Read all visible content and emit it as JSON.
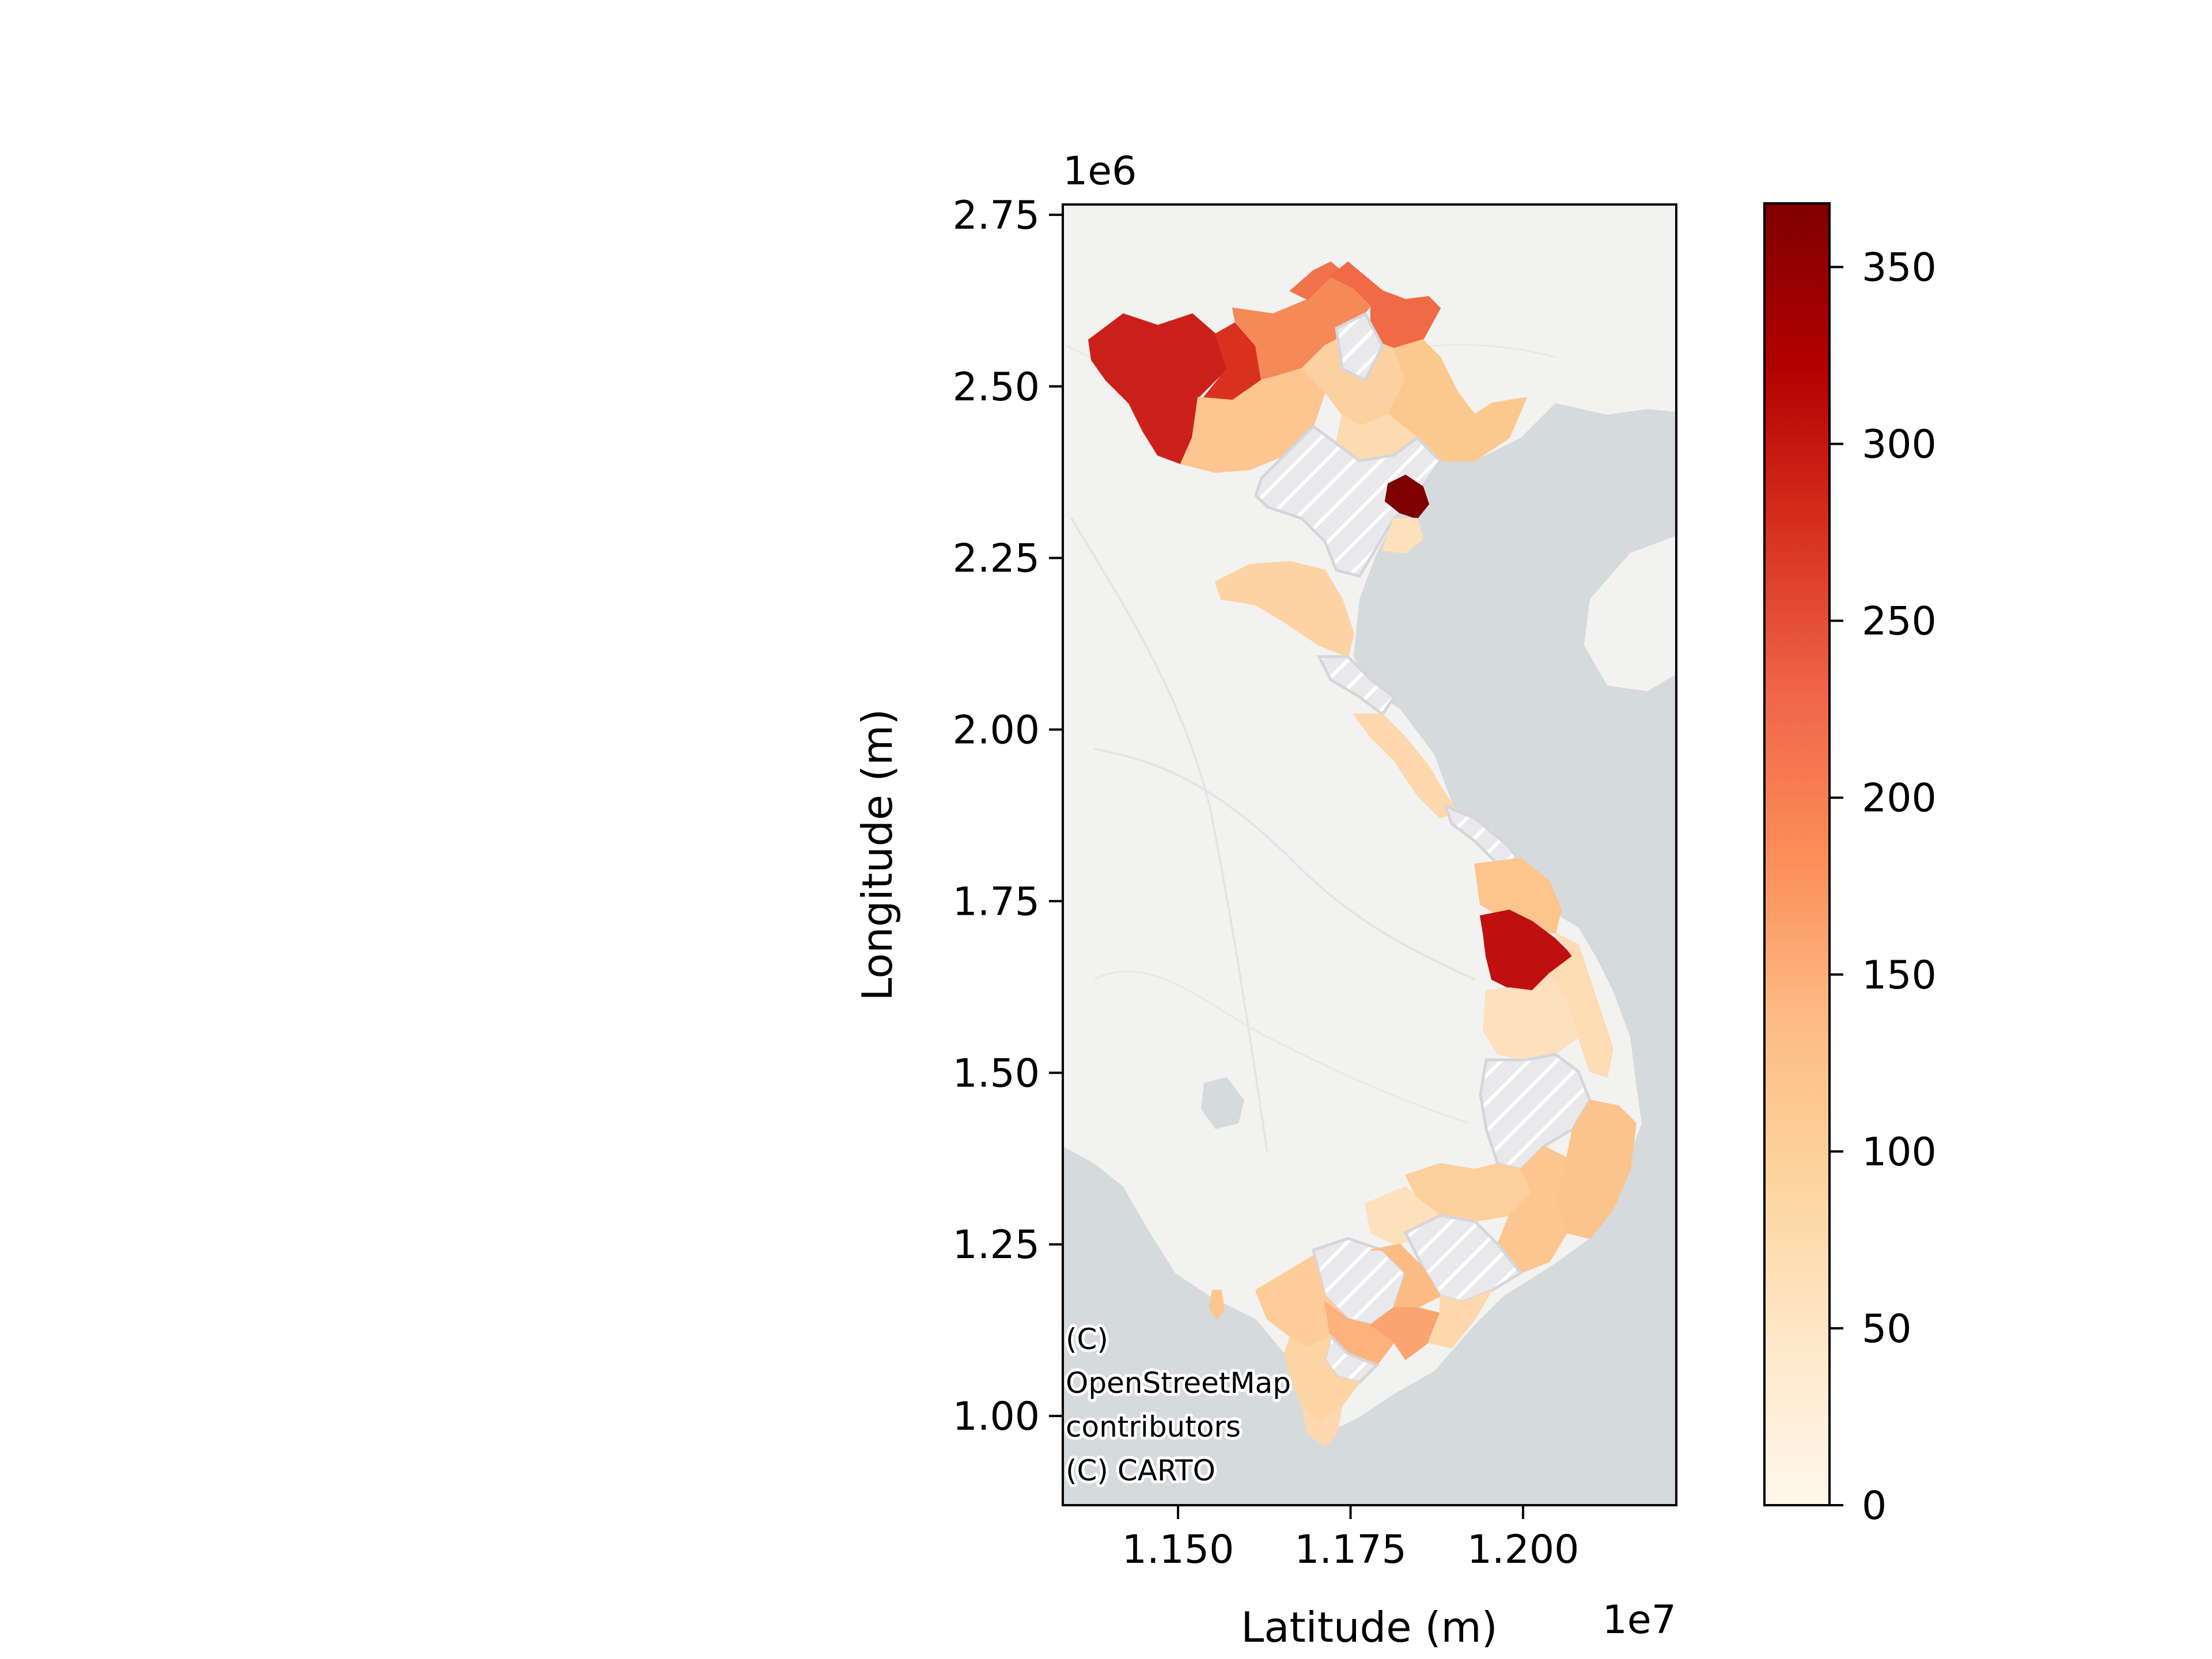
{
  "chart_data": {
    "type": "choropleth-map",
    "xlabel": "Latitude (m)",
    "ylabel": "Longitude (m)",
    "x_offset_label": "1e7",
    "y_offset_label": "1e6",
    "xlim": [
      11333000,
      12222000
    ],
    "ylim": [
      870000,
      2765000
    ],
    "x_ticks": [
      {
        "value": 11500000,
        "label": "1.150"
      },
      {
        "value": 11750000,
        "label": "1.175"
      },
      {
        "value": 12000000,
        "label": "1.200"
      }
    ],
    "y_ticks": [
      {
        "value": 1000000,
        "label": "1.00"
      },
      {
        "value": 1250000,
        "label": "1.25"
      },
      {
        "value": 1500000,
        "label": "1.50"
      },
      {
        "value": 1750000,
        "label": "1.75"
      },
      {
        "value": 2000000,
        "label": "2.00"
      },
      {
        "value": 2250000,
        "label": "2.25"
      },
      {
        "value": 2500000,
        "label": "2.50"
      },
      {
        "value": 2750000,
        "label": "2.75"
      }
    ],
    "colorbar": {
      "cmap": "OrRd",
      "range": [
        0,
        368
      ],
      "ticks": [
        0,
        50,
        100,
        150,
        200,
        250,
        300,
        350
      ],
      "tick_labels": [
        "0",
        "50",
        "100",
        "150",
        "200",
        "250",
        "300",
        "350"
      ]
    },
    "missing_style": "light grey with white diagonal hatching",
    "basemap": {
      "attribution_lines": [
        "(C)",
        "OpenStreetMap",
        "contributors",
        "(C) CARTO"
      ],
      "land_color": "#f2f2f0",
      "water_color": "#d5dadc"
    }
  }
}
